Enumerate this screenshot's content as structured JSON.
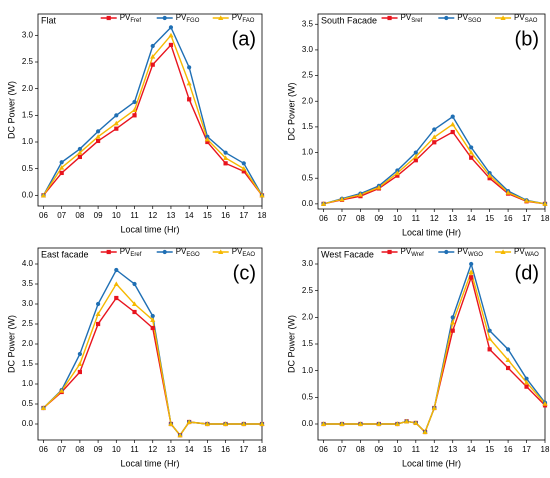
{
  "chart_data": [
    {
      "type": "line",
      "title": "Flat",
      "annotation": "(a)",
      "xlabel": "Local time (Hr)",
      "ylabel": "DC Power (W)",
      "x": [
        6,
        7,
        8,
        9,
        10,
        11,
        12,
        13,
        14,
        15,
        16,
        17,
        18
      ],
      "xlim": [
        5.7,
        18
      ],
      "xticks": [
        {
          "value": 6,
          "label": "06"
        },
        {
          "value": 7,
          "label": "07"
        },
        {
          "value": 8,
          "label": "08"
        },
        {
          "value": 9,
          "label": "09"
        },
        10,
        11,
        12,
        13,
        14,
        15,
        16,
        17,
        18
      ],
      "ylim": [
        -0.2,
        3.4
      ],
      "yticks": [
        {
          "value": 0,
          "label": "0.0"
        },
        0.5,
        {
          "value": 1,
          "label": "1.0"
        },
        1.5,
        {
          "value": 2,
          "label": "2.0"
        },
        2.5,
        {
          "value": 3,
          "label": "3.0"
        }
      ],
      "series": [
        {
          "name": "PVFref",
          "color": "#e8141e",
          "marker": "square",
          "values": [
            0,
            0.42,
            0.72,
            1.02,
            1.25,
            1.5,
            2.45,
            2.82,
            1.8,
            1.0,
            0.6,
            0.45,
            0
          ]
        },
        {
          "name": "PVFGO",
          "color": "#1f6fb4",
          "marker": "circle",
          "values": [
            0,
            0.62,
            0.87,
            1.2,
            1.5,
            1.75,
            2.8,
            3.15,
            2.4,
            1.1,
            0.8,
            0.6,
            0
          ]
        },
        {
          "name": "PVFAO",
          "color": "#f5b800",
          "marker": "triangle",
          "values": [
            0,
            0.52,
            0.8,
            1.1,
            1.35,
            1.6,
            2.6,
            3.0,
            2.1,
            1.05,
            0.7,
            0.5,
            0
          ]
        }
      ]
    },
    {
      "type": "line",
      "title": "South Facade",
      "annotation": "(b)",
      "xlabel": "Local time (Hr)",
      "ylabel": "DC Power (W)",
      "x": [
        6,
        7,
        8,
        9,
        10,
        11,
        12,
        13,
        14,
        15,
        16,
        17,
        18
      ],
      "xlim": [
        5.7,
        18
      ],
      "xticks": [
        {
          "value": 6,
          "label": "06"
        },
        {
          "value": 7,
          "label": "07"
        },
        {
          "value": 8,
          "label": "08"
        },
        {
          "value": 9,
          "label": "09"
        },
        10,
        11,
        12,
        13,
        14,
        15,
        16,
        17,
        18
      ],
      "ylim": [
        -0.1,
        3.7
      ],
      "yticks": [
        {
          "value": 0,
          "label": "0.0"
        },
        0.5,
        {
          "value": 1,
          "label": "1.0"
        },
        1.5,
        {
          "value": 2,
          "label": "2.0"
        },
        2.5,
        {
          "value": 3,
          "label": "3.0"
        },
        3.5
      ],
      "series": [
        {
          "name": "PVSref",
          "color": "#e8141e",
          "marker": "square",
          "values": [
            0,
            0.08,
            0.15,
            0.3,
            0.55,
            0.85,
            1.2,
            1.4,
            0.9,
            0.5,
            0.2,
            0.05,
            0
          ]
        },
        {
          "name": "PVSGO",
          "color": "#1f6fb4",
          "marker": "circle",
          "values": [
            0,
            0.1,
            0.2,
            0.35,
            0.65,
            1.0,
            1.45,
            1.7,
            1.1,
            0.6,
            0.25,
            0.07,
            0
          ]
        },
        {
          "name": "PVSAO",
          "color": "#f5b800",
          "marker": "triangle",
          "values": [
            0,
            0.09,
            0.18,
            0.32,
            0.6,
            0.92,
            1.3,
            1.55,
            1.0,
            0.55,
            0.22,
            0.06,
            0
          ]
        }
      ]
    },
    {
      "type": "line",
      "title": "East facade",
      "annotation": "(c)",
      "xlabel": "Local time (Hr)",
      "ylabel": "DC Power (W)",
      "x": [
        6,
        7,
        8,
        9,
        10,
        11,
        12,
        13,
        13.5,
        14,
        15,
        16,
        17,
        18
      ],
      "xlim": [
        5.7,
        18
      ],
      "xticks": [
        {
          "value": 6,
          "label": "06"
        },
        {
          "value": 7,
          "label": "07"
        },
        {
          "value": 8,
          "label": "08"
        },
        {
          "value": 9,
          "label": "09"
        },
        10,
        11,
        12,
        13,
        14,
        15,
        16,
        17,
        18
      ],
      "ylim": [
        -0.4,
        4.4
      ],
      "yticks": [
        {
          "value": 0,
          "label": "0.0"
        },
        0.5,
        {
          "value": 1,
          "label": "1.0"
        },
        1.5,
        {
          "value": 2,
          "label": "2.0"
        },
        2.5,
        {
          "value": 3,
          "label": "3.0"
        },
        3.5,
        {
          "value": 4,
          "label": "4.0"
        }
      ],
      "series": [
        {
          "name": "PVEref",
          "color": "#e8141e",
          "marker": "square",
          "values": [
            0.4,
            0.8,
            1.3,
            2.5,
            3.15,
            2.8,
            2.4,
            0,
            -0.28,
            0.05,
            0,
            0,
            0,
            0
          ]
        },
        {
          "name": "PVEGO",
          "color": "#1f6fb4",
          "marker": "circle",
          "values": [
            0.4,
            0.85,
            1.75,
            3.0,
            3.85,
            3.5,
            2.7,
            0,
            -0.28,
            0.05,
            0,
            0,
            0,
            0
          ]
        },
        {
          "name": "PVEAO",
          "color": "#f5b800",
          "marker": "triangle",
          "values": [
            0.4,
            0.83,
            1.5,
            2.75,
            3.5,
            3.0,
            2.6,
            0,
            -0.28,
            0.05,
            0,
            0,
            0,
            0
          ]
        }
      ]
    },
    {
      "type": "line",
      "title": "West Facade",
      "annotation": "(d)",
      "xlabel": "Local time (Hr)",
      "ylabel": "DC Power (W)",
      "x": [
        6,
        7,
        8,
        9,
        10,
        10.5,
        11,
        11.5,
        12,
        13,
        14,
        15,
        16,
        17,
        18
      ],
      "xlim": [
        5.7,
        18
      ],
      "xticks": [
        {
          "value": 6,
          "label": "06"
        },
        {
          "value": 7,
          "label": "07"
        },
        {
          "value": 8,
          "label": "08"
        },
        {
          "value": 9,
          "label": "09"
        },
        10,
        11,
        12,
        13,
        14,
        15,
        16,
        17,
        18
      ],
      "ylim": [
        -0.3,
        3.3
      ],
      "yticks": [
        {
          "value": 0,
          "label": "0.0"
        },
        0.5,
        {
          "value": 1,
          "label": "1.0"
        },
        1.5,
        {
          "value": 2,
          "label": "2.0"
        },
        2.5,
        {
          "value": 3,
          "label": "3.0"
        }
      ],
      "series": [
        {
          "name": "PVWref",
          "color": "#e8141e",
          "marker": "square",
          "values": [
            0,
            0,
            0,
            0,
            0,
            0.05,
            0.02,
            -0.15,
            0.3,
            1.75,
            2.75,
            1.4,
            1.05,
            0.7,
            0.35
          ]
        },
        {
          "name": "PVWGO",
          "color": "#1f6fb4",
          "marker": "circle",
          "values": [
            0,
            0,
            0,
            0,
            0,
            0.05,
            0.02,
            -0.15,
            0.3,
            2.0,
            3.0,
            1.75,
            1.4,
            0.85,
            0.4
          ]
        },
        {
          "name": "PVWAO",
          "color": "#f5b800",
          "marker": "triangle",
          "values": [
            0,
            0,
            0,
            0,
            0,
            0.05,
            0.02,
            -0.15,
            0.3,
            1.9,
            2.85,
            1.6,
            1.2,
            0.78,
            0.38
          ]
        }
      ]
    }
  ]
}
